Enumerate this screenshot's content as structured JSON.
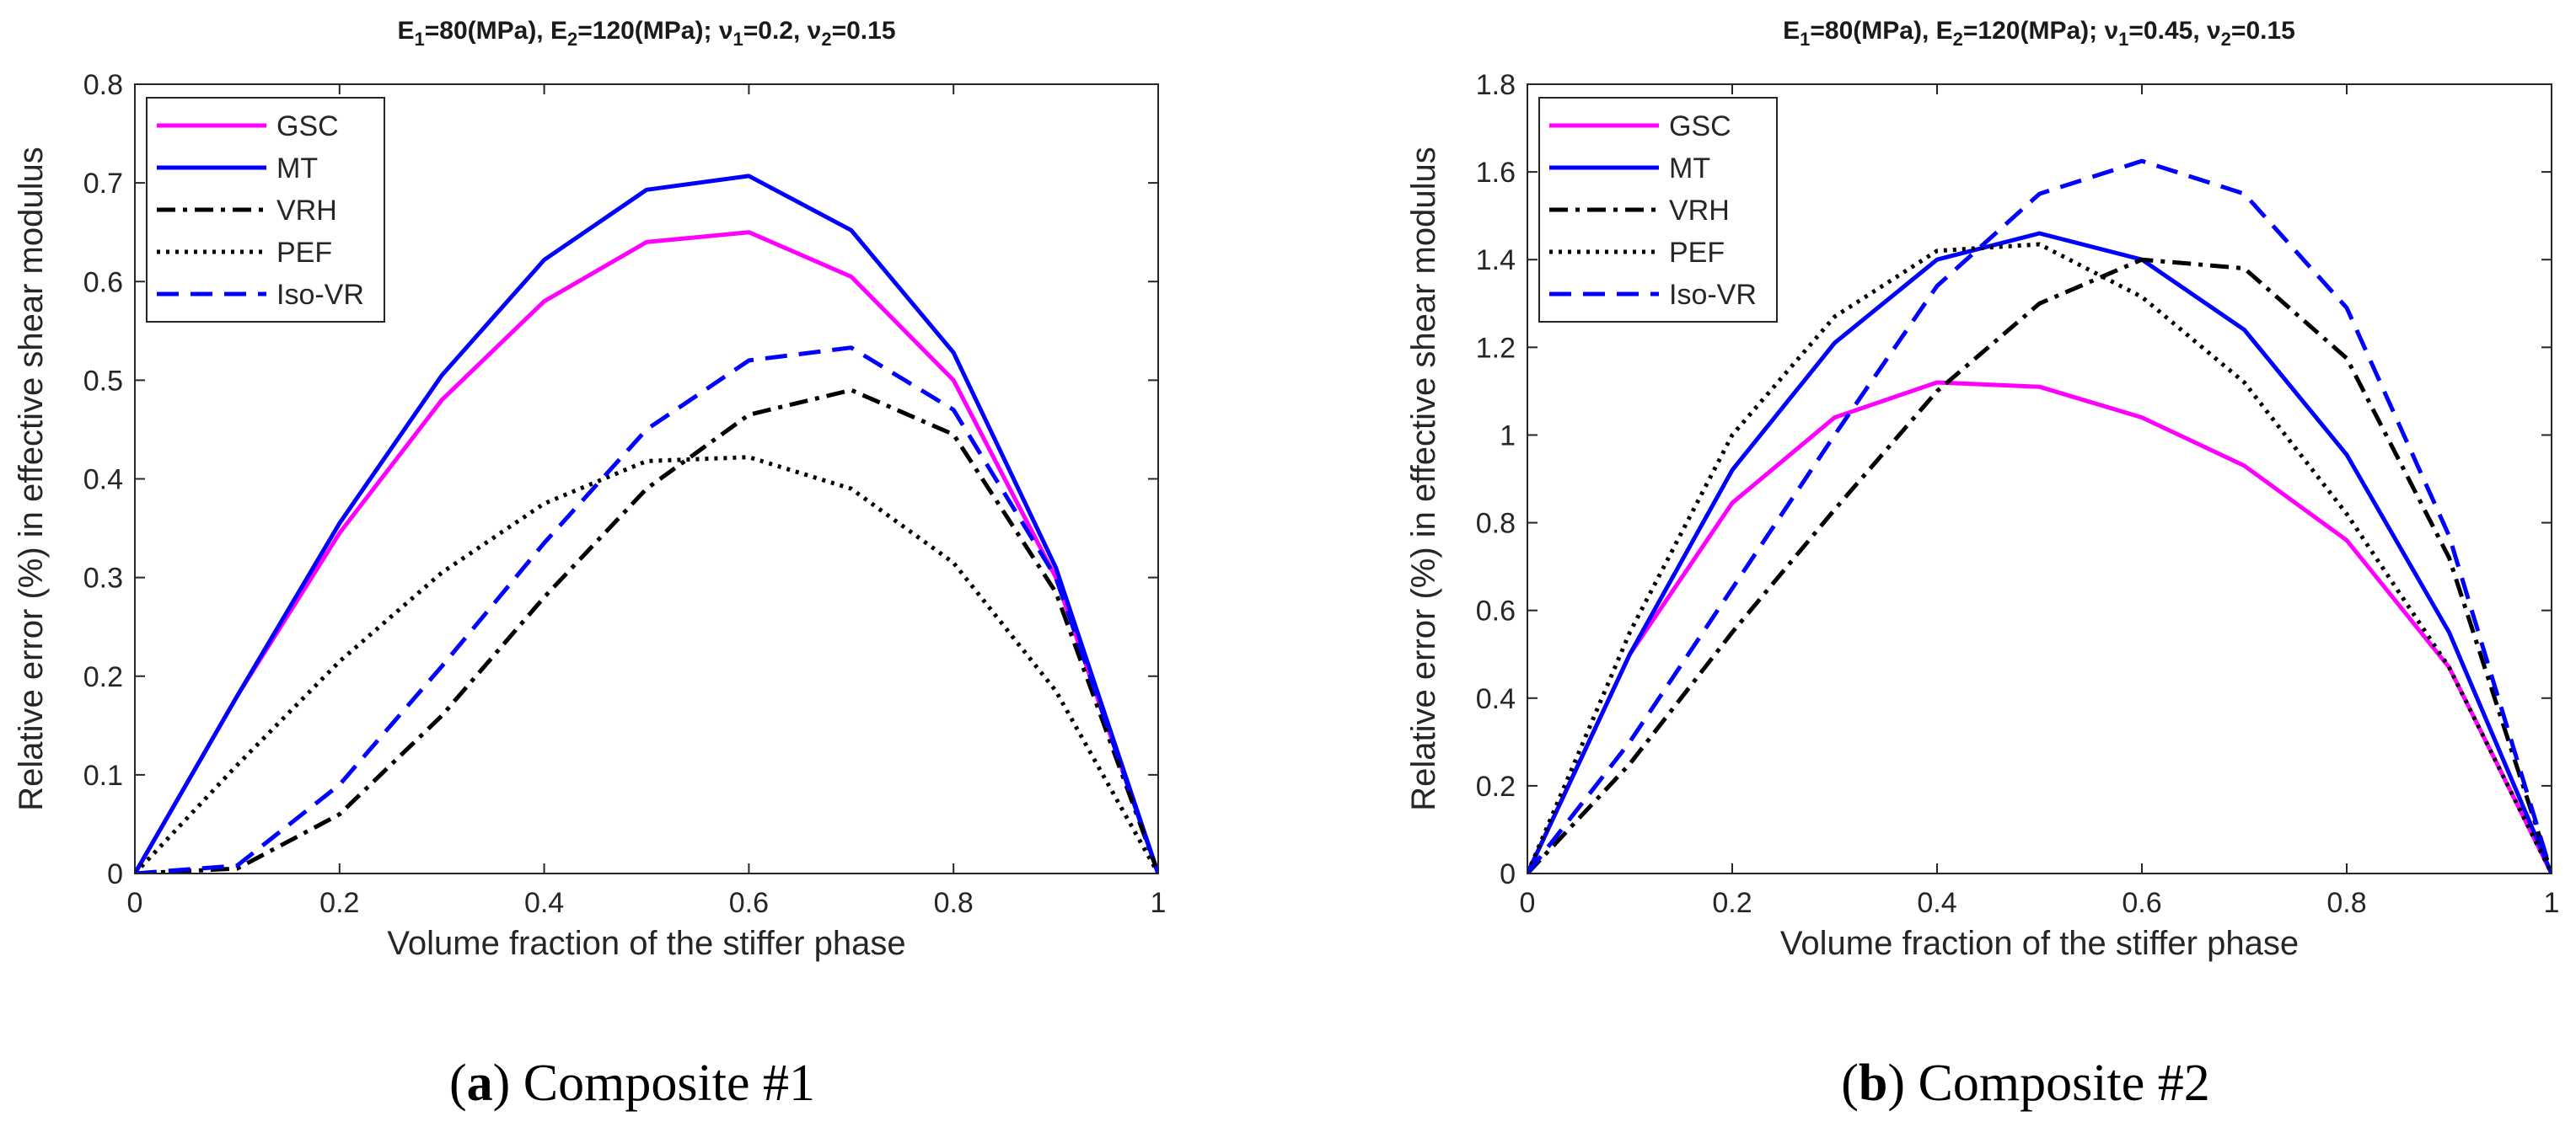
{
  "chart_data": [
    {
      "type": "line",
      "caption_letter": "a",
      "caption_text": ") Composite #1",
      "caption_paren": "(",
      "title_parts": [
        "E",
        "1",
        "=80(MPa), E",
        "2",
        "=120(MPa); ",
        "ν",
        "1",
        "=0.2, ",
        "ν",
        "2",
        "=0.15"
      ],
      "title_sub_flags": [
        false,
        true,
        false,
        true,
        false,
        false,
        true,
        false,
        false,
        true,
        false
      ],
      "xlabel": "Volume fraction of the stiffer phase",
      "ylabel": "Relative error (%) in effective shear modulus",
      "xlim": [
        0,
        1
      ],
      "ylim": [
        0,
        0.8
      ],
      "xticks": [
        0,
        0.2,
        0.4,
        0.6,
        0.8,
        1
      ],
      "xtick_labels": [
        "0",
        "0.2",
        "0.4",
        "0.6",
        "0.8",
        "1"
      ],
      "yticks": [
        0,
        0.1,
        0.2,
        0.3,
        0.4,
        0.5,
        0.6,
        0.7,
        0.8
      ],
      "ytick_labels": [
        "0",
        "0.1",
        "0.2",
        "0.3",
        "0.4",
        "0.5",
        "0.6",
        "0.7",
        "0.8"
      ],
      "legend_position": "top-left",
      "x": [
        0,
        0.1,
        0.2,
        0.3,
        0.4,
        0.5,
        0.6,
        0.7,
        0.8,
        0.9,
        1
      ],
      "series": [
        {
          "name": "GSC",
          "color": "#ff00ff",
          "style": "solid",
          "values": [
            0,
            0.18,
            0.345,
            0.48,
            0.58,
            0.64,
            0.65,
            0.605,
            0.5,
            0.3,
            0
          ]
        },
        {
          "name": "MT",
          "color": "#0000ff",
          "style": "solid",
          "values": [
            0,
            0.18,
            0.355,
            0.505,
            0.622,
            0.693,
            0.707,
            0.652,
            0.528,
            0.31,
            0
          ]
        },
        {
          "name": "VRH",
          "color": "#000000",
          "style": "dashdot",
          "values": [
            0,
            0.005,
            0.06,
            0.16,
            0.28,
            0.39,
            0.465,
            0.49,
            0.445,
            0.285,
            0
          ]
        },
        {
          "name": "PEF",
          "color": "#000000",
          "style": "dotted",
          "values": [
            0,
            0.11,
            0.215,
            0.305,
            0.375,
            0.418,
            0.422,
            0.39,
            0.315,
            0.185,
            0
          ]
        },
        {
          "name": "Iso-VR",
          "color": "#0000ff",
          "style": "dashed",
          "values": [
            0,
            0.008,
            0.09,
            0.21,
            0.335,
            0.45,
            0.52,
            0.533,
            0.47,
            0.3,
            0
          ]
        }
      ]
    },
    {
      "type": "line",
      "caption_letter": "b",
      "caption_text": ") Composite #2",
      "caption_paren": "(",
      "title_parts": [
        "E",
        "1",
        "=80(MPa), E",
        "2",
        "=120(MPa); ",
        "ν",
        "1",
        "=0.45, ",
        "ν",
        "2",
        "=0.15"
      ],
      "title_sub_flags": [
        false,
        true,
        false,
        true,
        false,
        false,
        true,
        false,
        false,
        true,
        false
      ],
      "xlabel": "Volume fraction of the stiffer phase",
      "ylabel": "Relative error (%) in effective shear modulus",
      "xlim": [
        0,
        1
      ],
      "ylim": [
        0,
        1.8
      ],
      "xticks": [
        0,
        0.2,
        0.4,
        0.6,
        0.8,
        1
      ],
      "xtick_labels": [
        "0",
        "0.2",
        "0.4",
        "0.6",
        "0.8",
        "1"
      ],
      "yticks": [
        0,
        0.2,
        0.4,
        0.6,
        0.8,
        1,
        1.2,
        1.4,
        1.6,
        1.8
      ],
      "ytick_labels": [
        "0",
        "0.2",
        "0.4",
        "0.6",
        "0.8",
        "1",
        "1.2",
        "1.4",
        "1.6",
        "1.8"
      ],
      "legend_position": "top-left",
      "x": [
        0,
        0.1,
        0.2,
        0.3,
        0.4,
        0.5,
        0.6,
        0.7,
        0.8,
        0.9,
        1
      ],
      "series": [
        {
          "name": "GSC",
          "color": "#ff00ff",
          "style": "solid",
          "values": [
            0,
            0.5,
            0.845,
            1.04,
            1.12,
            1.11,
            1.04,
            0.93,
            0.76,
            0.47,
            0
          ]
        },
        {
          "name": "MT",
          "color": "#0000ff",
          "style": "solid",
          "values": [
            0,
            0.5,
            0.92,
            1.21,
            1.4,
            1.46,
            1.4,
            1.24,
            0.955,
            0.55,
            0
          ]
        },
        {
          "name": "VRH",
          "color": "#000000",
          "style": "dashdot",
          "values": [
            0,
            0.25,
            0.55,
            0.83,
            1.1,
            1.3,
            1.4,
            1.38,
            1.175,
            0.72,
            0
          ]
        },
        {
          "name": "PEF",
          "color": "#000000",
          "style": "dotted",
          "values": [
            0,
            0.55,
            1.0,
            1.27,
            1.42,
            1.435,
            1.315,
            1.12,
            0.82,
            0.47,
            0
          ]
        },
        {
          "name": "Iso-VR",
          "color": "#0000ff",
          "style": "dashed",
          "values": [
            0,
            0.3,
            0.65,
            1.0,
            1.34,
            1.55,
            1.625,
            1.55,
            1.29,
            0.77,
            0
          ]
        }
      ]
    }
  ]
}
